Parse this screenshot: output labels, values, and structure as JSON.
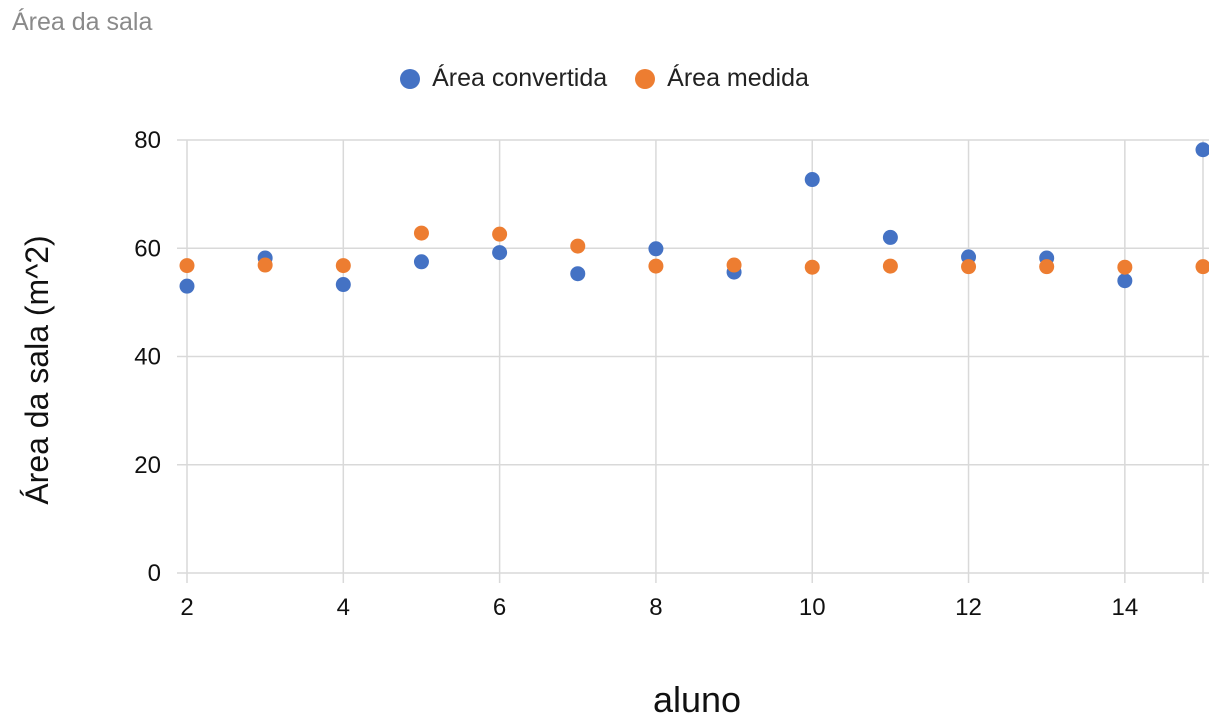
{
  "page_title": "Área da sala",
  "colors": {
    "Área convertida": "#4472C4",
    "Área medida": "#ED7D31",
    "grid": "#d9d9d9"
  },
  "chart_data": {
    "type": "scatter",
    "title": "",
    "xlabel": "aluno",
    "ylabel": "Área da sala (m^2)",
    "xlim": [
      2,
      15
    ],
    "ylim": [
      0,
      80
    ],
    "xticks": [
      2,
      4,
      6,
      8,
      10,
      12,
      14
    ],
    "yticks": [
      0,
      20,
      40,
      60,
      80
    ],
    "grid": true,
    "legend_position": "top",
    "series": [
      {
        "name": "Área convertida",
        "x": [
          2,
          3,
          4,
          5,
          6,
          7,
          8,
          9,
          10,
          11,
          12,
          13,
          14,
          15
        ],
        "y": [
          53,
          58.2,
          53.3,
          57.5,
          59.2,
          55.3,
          59.9,
          55.6,
          72.7,
          62,
          58.4,
          58.2,
          54,
          78.2
        ]
      },
      {
        "name": "Área medida",
        "x": [
          2,
          3,
          4,
          5,
          6,
          7,
          8,
          9,
          10,
          11,
          12,
          13,
          14,
          15
        ],
        "y": [
          56.8,
          56.9,
          56.8,
          62.8,
          62.6,
          60.4,
          56.7,
          56.9,
          56.5,
          56.7,
          56.6,
          56.6,
          56.5,
          56.6
        ]
      }
    ]
  }
}
